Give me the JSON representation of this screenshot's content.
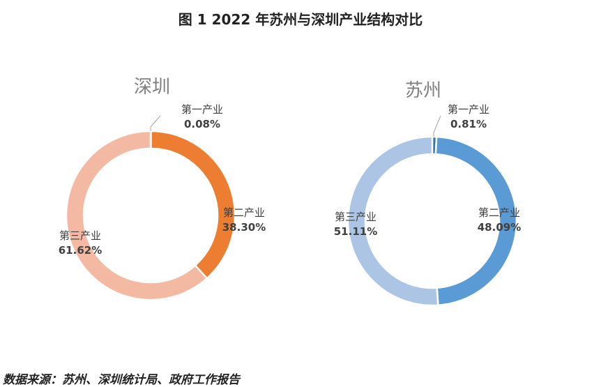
{
  "title": "图 1 2022 年苏州与深圳产业结构对比",
  "source": "数据来源：苏州、深圳统计局、政府工作报告",
  "chart_data": [
    {
      "type": "pie",
      "subtype": "donut",
      "title": "深圳",
      "categories": [
        "第一产业",
        "第二产业",
        "第三产业"
      ],
      "values": [
        0.08,
        38.3,
        61.62
      ],
      "value_labels": [
        "0.08%",
        "38.30%",
        "61.62%"
      ],
      "colors": [
        "#c55a11",
        "#ed7d31",
        "#f4b9a2"
      ]
    },
    {
      "type": "pie",
      "subtype": "donut",
      "title": "苏州",
      "categories": [
        "第一产业",
        "第二产业",
        "第三产业"
      ],
      "values": [
        0.81,
        48.09,
        51.11
      ],
      "value_labels": [
        "0.81%",
        "48.09%",
        "51.11%"
      ],
      "colors": [
        "#2e75b6",
        "#5b9bd5",
        "#adc5e5"
      ]
    }
  ]
}
